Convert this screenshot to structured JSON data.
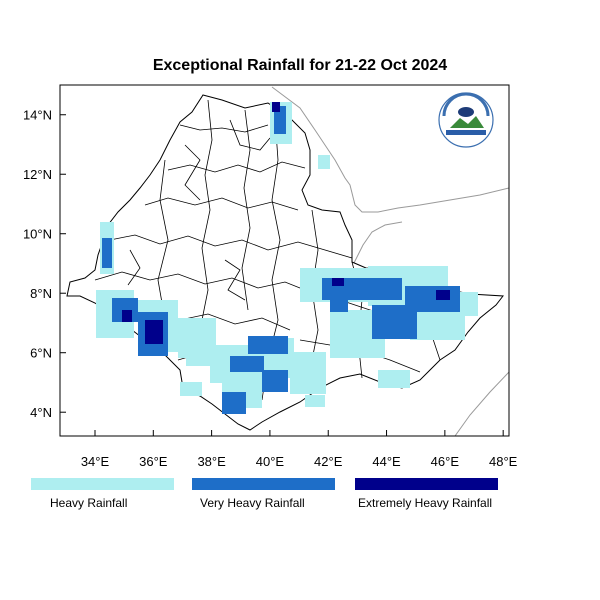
{
  "title": "Exceptional Rainfall for 21-22 Oct 2024",
  "axes": {
    "x_ticks": [
      "34°E",
      "36°E",
      "38°E",
      "40°E",
      "42°E",
      "44°E",
      "46°E",
      "48°E"
    ],
    "y_ticks": [
      "4°N",
      "6°N",
      "8°N",
      "10°N",
      "12°N",
      "14°N"
    ],
    "lon_range": [
      32.8,
      48.2
    ],
    "lat_range": [
      3.2,
      15.0
    ]
  },
  "legend": [
    {
      "label": "Heavy Rainfall",
      "color": "#aeeef0"
    },
    {
      "label": "Very Heavy Rainfall",
      "color": "#1e6ec8"
    },
    {
      "label": "Extremely Heavy Rainfall",
      "color": "#00008b"
    }
  ],
  "logo": {
    "icon": "meteorology-institute-logo"
  }
}
